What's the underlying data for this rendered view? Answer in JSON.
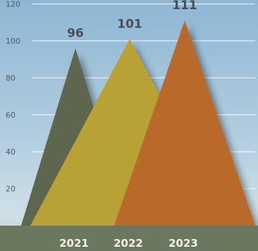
{
  "chart_data": {
    "type": "area",
    "categories": [
      "2021",
      "2022",
      "2023"
    ],
    "values": [
      96,
      101,
      111
    ],
    "y_ticks": [
      20,
      40,
      60,
      80,
      100,
      120
    ],
    "ylim": [
      0,
      125
    ],
    "grid": true,
    "colors": [
      "#5e6650",
      "#b8a234",
      "#b9692a"
    ],
    "background": "#a9c7dc",
    "base_band_color": "#6c7760"
  }
}
